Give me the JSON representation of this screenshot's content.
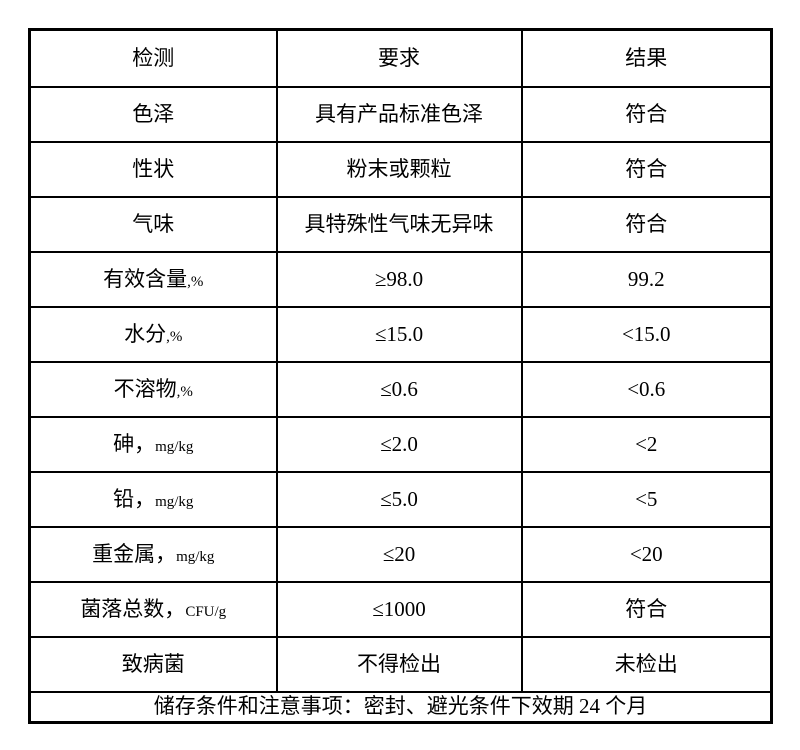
{
  "table": {
    "headers": [
      "检测",
      "要求",
      "结果"
    ],
    "rows": [
      {
        "name": "色泽",
        "unit": "",
        "req": "具有产品标准色泽",
        "result": "符合"
      },
      {
        "name": "性状",
        "unit": "",
        "req": "粉末或颗粒",
        "result": "符合"
      },
      {
        "name": "气味",
        "unit": "",
        "req": "具特殊性气味无异味",
        "result": "符合"
      },
      {
        "name": "有效含量",
        "unit": ",%",
        "req": "≥98.0",
        "result": "99.2"
      },
      {
        "name": "水分",
        "unit": ",%",
        "req": "≤15.0",
        "result": "<15.0"
      },
      {
        "name": "不溶物",
        "unit": ",%",
        "req": "≤0.6",
        "result": "<0.6"
      },
      {
        "name": "砷，",
        "unit": "mg/kg",
        "req": "≤2.0",
        "result": "<2"
      },
      {
        "name": "铅，",
        "unit": "mg/kg",
        "req": "≤5.0",
        "result": "<5"
      },
      {
        "name": "重金属，",
        "unit": "mg/kg",
        "req": "≤20",
        "result": "<20"
      },
      {
        "name": "菌落总数，",
        "unit": "CFU/g",
        "req": "≤1000",
        "result": "符合"
      },
      {
        "name": "致病菌",
        "unit": "",
        "req": "不得检出",
        "result": "未检出"
      }
    ],
    "footer": "储存条件和注意事项：密封、避光条件下效期 24 个月"
  }
}
